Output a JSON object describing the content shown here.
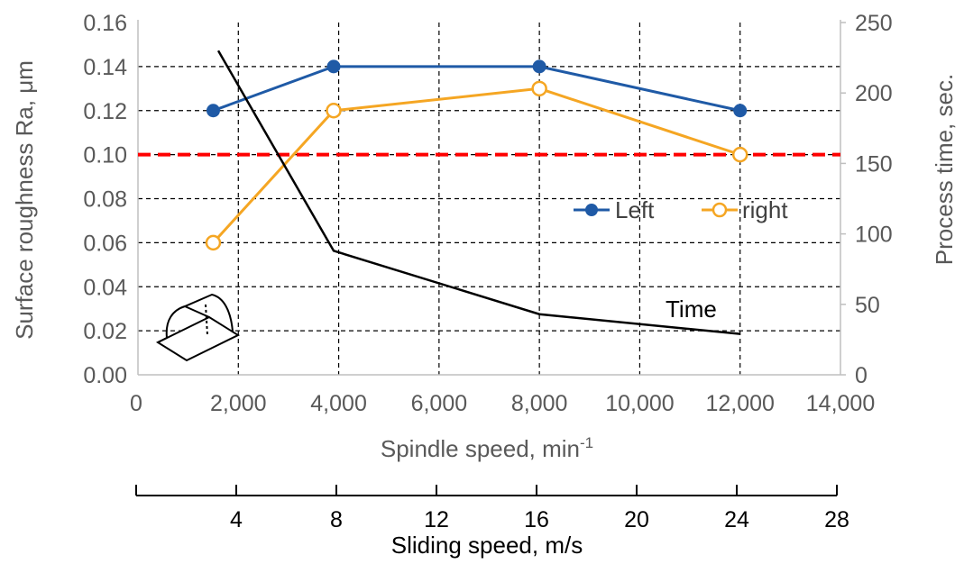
{
  "chart_data": {
    "type": "line",
    "xlabel": "Spindle speed, min",
    "xlabel_superscript": "-1",
    "ylabel_left": "Surface roughness Ra, μm",
    "ylabel_right": "Process time, sec.",
    "x_ticks": [
      "0",
      "2,000",
      "4,000",
      "6,000",
      "8,000",
      "10,000",
      "12,000",
      "14,000"
    ],
    "x_range": [
      0,
      14000
    ],
    "y_left_ticks": [
      "0.00",
      "0.02",
      "0.04",
      "0.06",
      "0.08",
      "0.10",
      "0.12",
      "0.14",
      "0.16"
    ],
    "y_left_range": [
      0,
      0.16
    ],
    "y_right_ticks": [
      "0",
      "50",
      "100",
      "150",
      "200",
      "250"
    ],
    "y_right_range": [
      0,
      250
    ],
    "grid": true,
    "legend_position": "center-right",
    "threshold": {
      "value": 0.1,
      "color": "#ff0000",
      "style": "dashed"
    },
    "series": [
      {
        "name": "Left",
        "axis": "left",
        "color": "#1f5aa6",
        "marker": "filled-circle",
        "x": [
          1500,
          3900,
          8000,
          12000
        ],
        "y": [
          0.12,
          0.14,
          0.14,
          0.12
        ]
      },
      {
        "name": "right",
        "axis": "left",
        "color": "#f5a623",
        "marker": "open-circle",
        "x": [
          1500,
          3900,
          8000,
          12000
        ],
        "y": [
          0.06,
          0.12,
          0.13,
          0.1
        ]
      },
      {
        "name": "",
        "axis": "right",
        "color": "#000000",
        "marker": "none",
        "x": [
          1600,
          3900,
          8000,
          12000
        ],
        "y": [
          230,
          88,
          43,
          29
        ]
      }
    ],
    "annotation_time": "Time",
    "secondary_axis": {
      "label": "Sliding speed, m/s",
      "ticks": [
        "4",
        "8",
        "12",
        "16",
        "20",
        "24",
        "28"
      ],
      "tick_values": [
        4,
        8,
        12,
        16,
        20,
        24,
        28
      ],
      "range": [
        0,
        28
      ]
    }
  }
}
